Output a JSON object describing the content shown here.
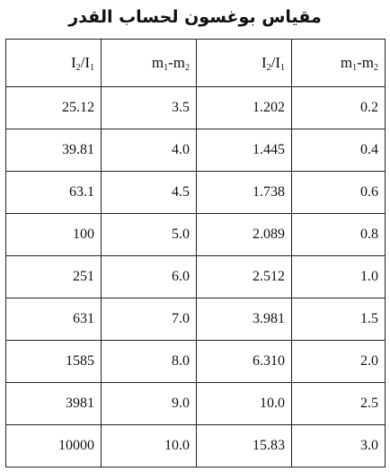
{
  "title": "مقياس بوغسون لحساب القدر",
  "table": {
    "headers": [
      {
        "base": "I",
        "sub1": "2",
        "mid": "/I",
        "sub2": "1"
      },
      {
        "base": "m",
        "sub1": "1",
        "mid": "-m",
        "sub2": "2"
      },
      {
        "base": "I",
        "sub1": "2",
        "mid": "/I",
        "sub2": "1"
      },
      {
        "base": "m",
        "sub1": "1",
        "mid": "-m",
        "sub2": "2"
      }
    ],
    "rows": [
      [
        "25.12",
        "3.5",
        "1.202",
        "0.2"
      ],
      [
        "39.81",
        "4.0",
        "1.445",
        "0.4"
      ],
      [
        "63.1",
        "4.5",
        "1.738",
        "0.6"
      ],
      [
        "100",
        "5.0",
        "2.089",
        "0.8"
      ],
      [
        "251",
        "6.0",
        "2.512",
        "1.0"
      ],
      [
        "631",
        "7.0",
        "3.981",
        "1.5"
      ],
      [
        "1585",
        "8.0",
        "6.310",
        "2.0"
      ],
      [
        "3981",
        "9.0",
        "10.0",
        "2.5"
      ],
      [
        "10000",
        "10.0",
        "15.83",
        "3.0"
      ]
    ]
  }
}
